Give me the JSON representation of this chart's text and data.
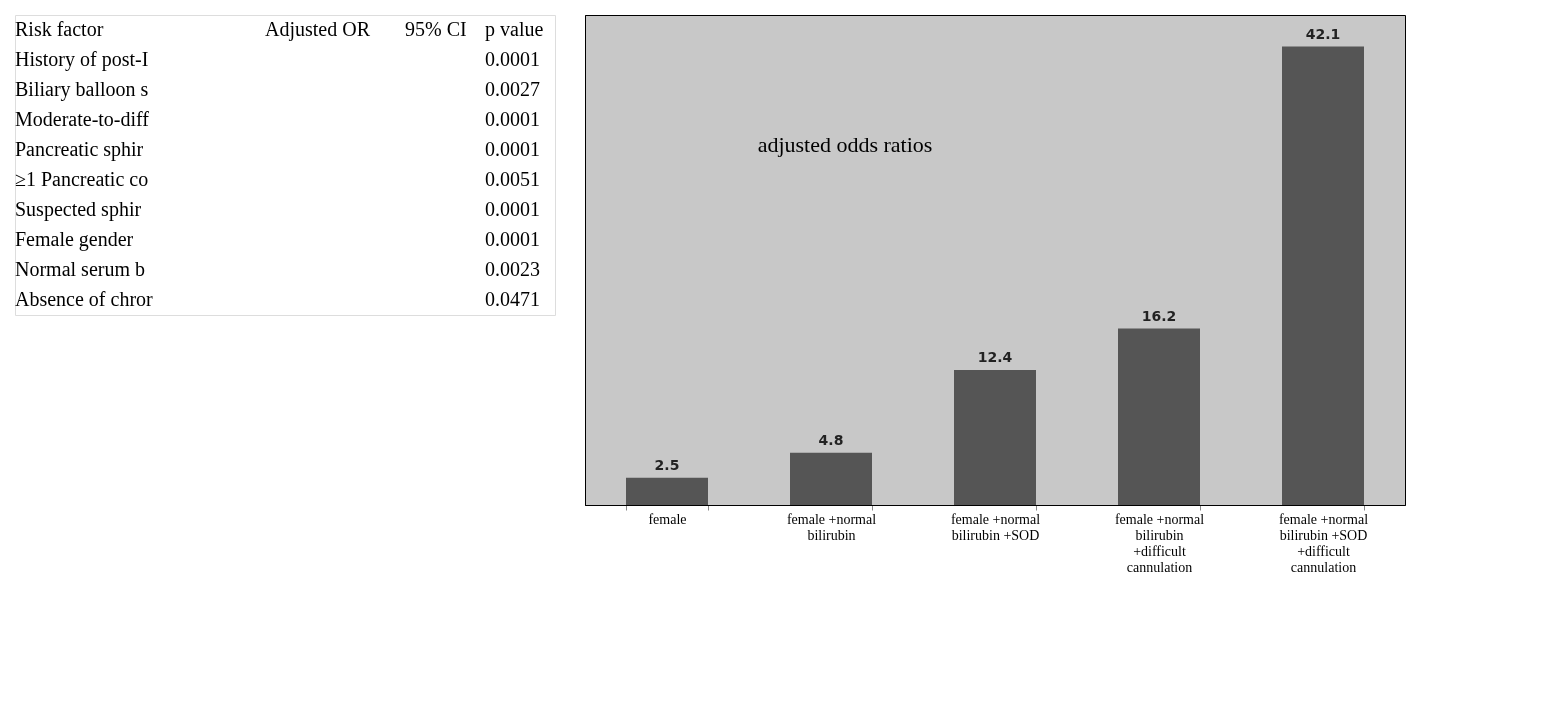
{
  "chart_data": [
    {
      "type": "other",
      "categories": [
        "Risk factor",
        "Adjusted OR",
        "95% CI",
        "p value"
      ],
      "y_categories": [
        "History of post-I",
        "Biliary balloon s",
        "Moderate-to-diff",
        "Pancreatic sphir",
        "≥1 Pancreatic co",
        "Suspected sphir",
        "Female gender",
        "Normal serum b",
        "Absence of chror"
      ],
      "cell_labels": [
        [
          null,
          null,
          "0.0001"
        ],
        [
          null,
          null,
          "0.0027"
        ],
        [
          null,
          null,
          "0.0001"
        ],
        [
          null,
          null,
          "0.0001"
        ],
        [
          null,
          null,
          "0.0051"
        ],
        [
          null,
          null,
          "0.0001"
        ],
        [
          null,
          null,
          "0.0001"
        ],
        [
          null,
          null,
          "0.0023"
        ],
        [
          null,
          null,
          "0.0471"
        ]
      ]
    },
    {
      "type": "bar",
      "categories": [
        "female",
        "female +normal bilirubin",
        "female +normal bilirubin +SOD",
        "female +normal bilirubin +difficult cannulation",
        "female +normal bilirubin +SOD +difficult cannulation"
      ],
      "values": [
        2.5,
        4.8,
        12.4,
        16.2,
        42.1
      ],
      "color": "#555555",
      "data_labels": true,
      "ylim": [
        0,
        45
      ],
      "tick_labels": "x",
      "annotations": [
        "adjusted odds ratios"
      ]
    }
  ]
}
